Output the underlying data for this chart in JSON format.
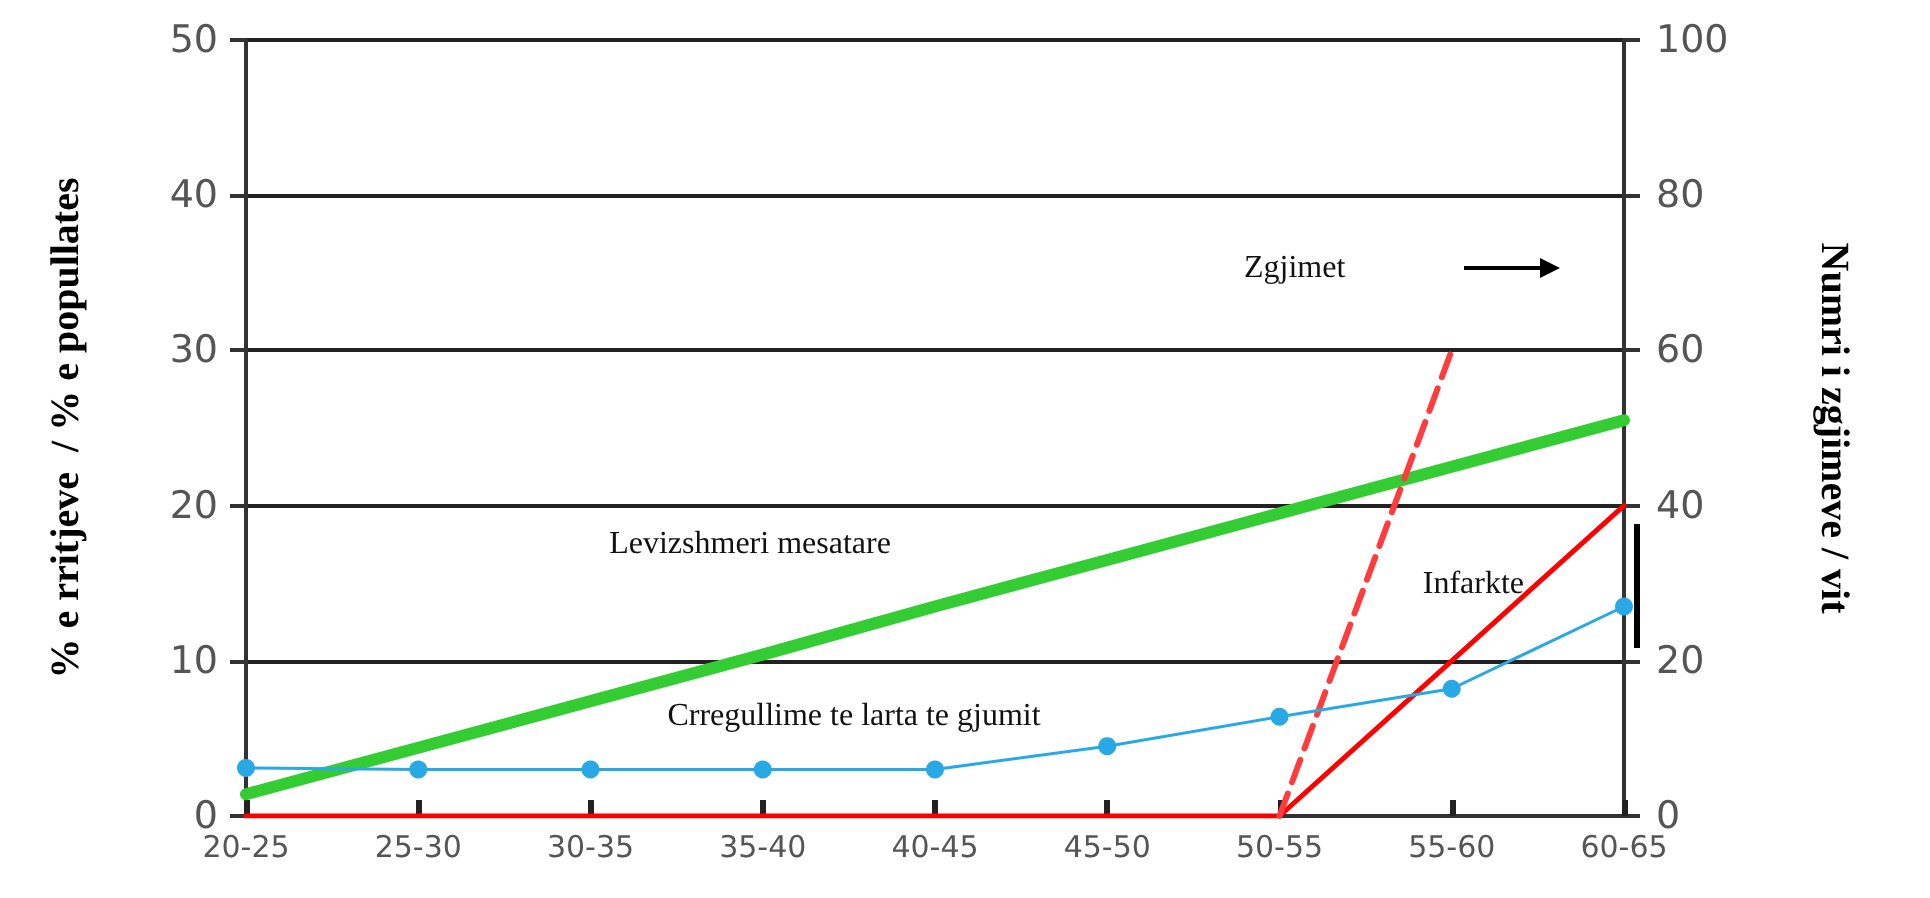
{
  "chart_data": {
    "type": "line",
    "ylabel": "% e rritjeve  / % e popullates",
    "y2label": "Numri i zgjimeve / vit",
    "categories": [
      "20-25",
      "25-30",
      "30-35",
      "35-40",
      "40-45",
      "45-50",
      "50-55",
      "55-60",
      "60-65"
    ],
    "series": [
      {
        "color": "#33cc33",
        "values": [
          1.4,
          4.4,
          7.4,
          10.4,
          13.5,
          16.5,
          19.5,
          22.5,
          25.5
        ],
        "marker": "none"
      },
      {
        "color": "#29a8e6",
        "values": [
          3.1,
          3,
          3,
          3,
          3,
          4.5,
          6.4,
          8.2,
          13.5
        ],
        "marker": "circle"
      },
      {
        "color": "#ff0000",
        "axis": "y2",
        "values": [
          0,
          0,
          0,
          0,
          0,
          0,
          0,
          20,
          40
        ],
        "marker": "none"
      },
      {
        "color": "#ff3b3b",
        "axis": "y2",
        "values": [
          null,
          null,
          null,
          null,
          null,
          null,
          0,
          60,
          null
        ],
        "marker": "none",
        "line_style": "dashed"
      }
    ],
    "ylim": [
      0,
      50
    ],
    "yticks": [
      0,
      10,
      20,
      30,
      40,
      50
    ],
    "y2lim": [
      0,
      100
    ],
    "y2ticks": [
      0,
      20,
      40,
      60,
      80,
      100
    ],
    "grid": "y",
    "annotations": [
      "Levizshmeri mesatare",
      "Crregullime te larta te gjumit",
      "Zgjimet",
      "Infarkte"
    ]
  }
}
